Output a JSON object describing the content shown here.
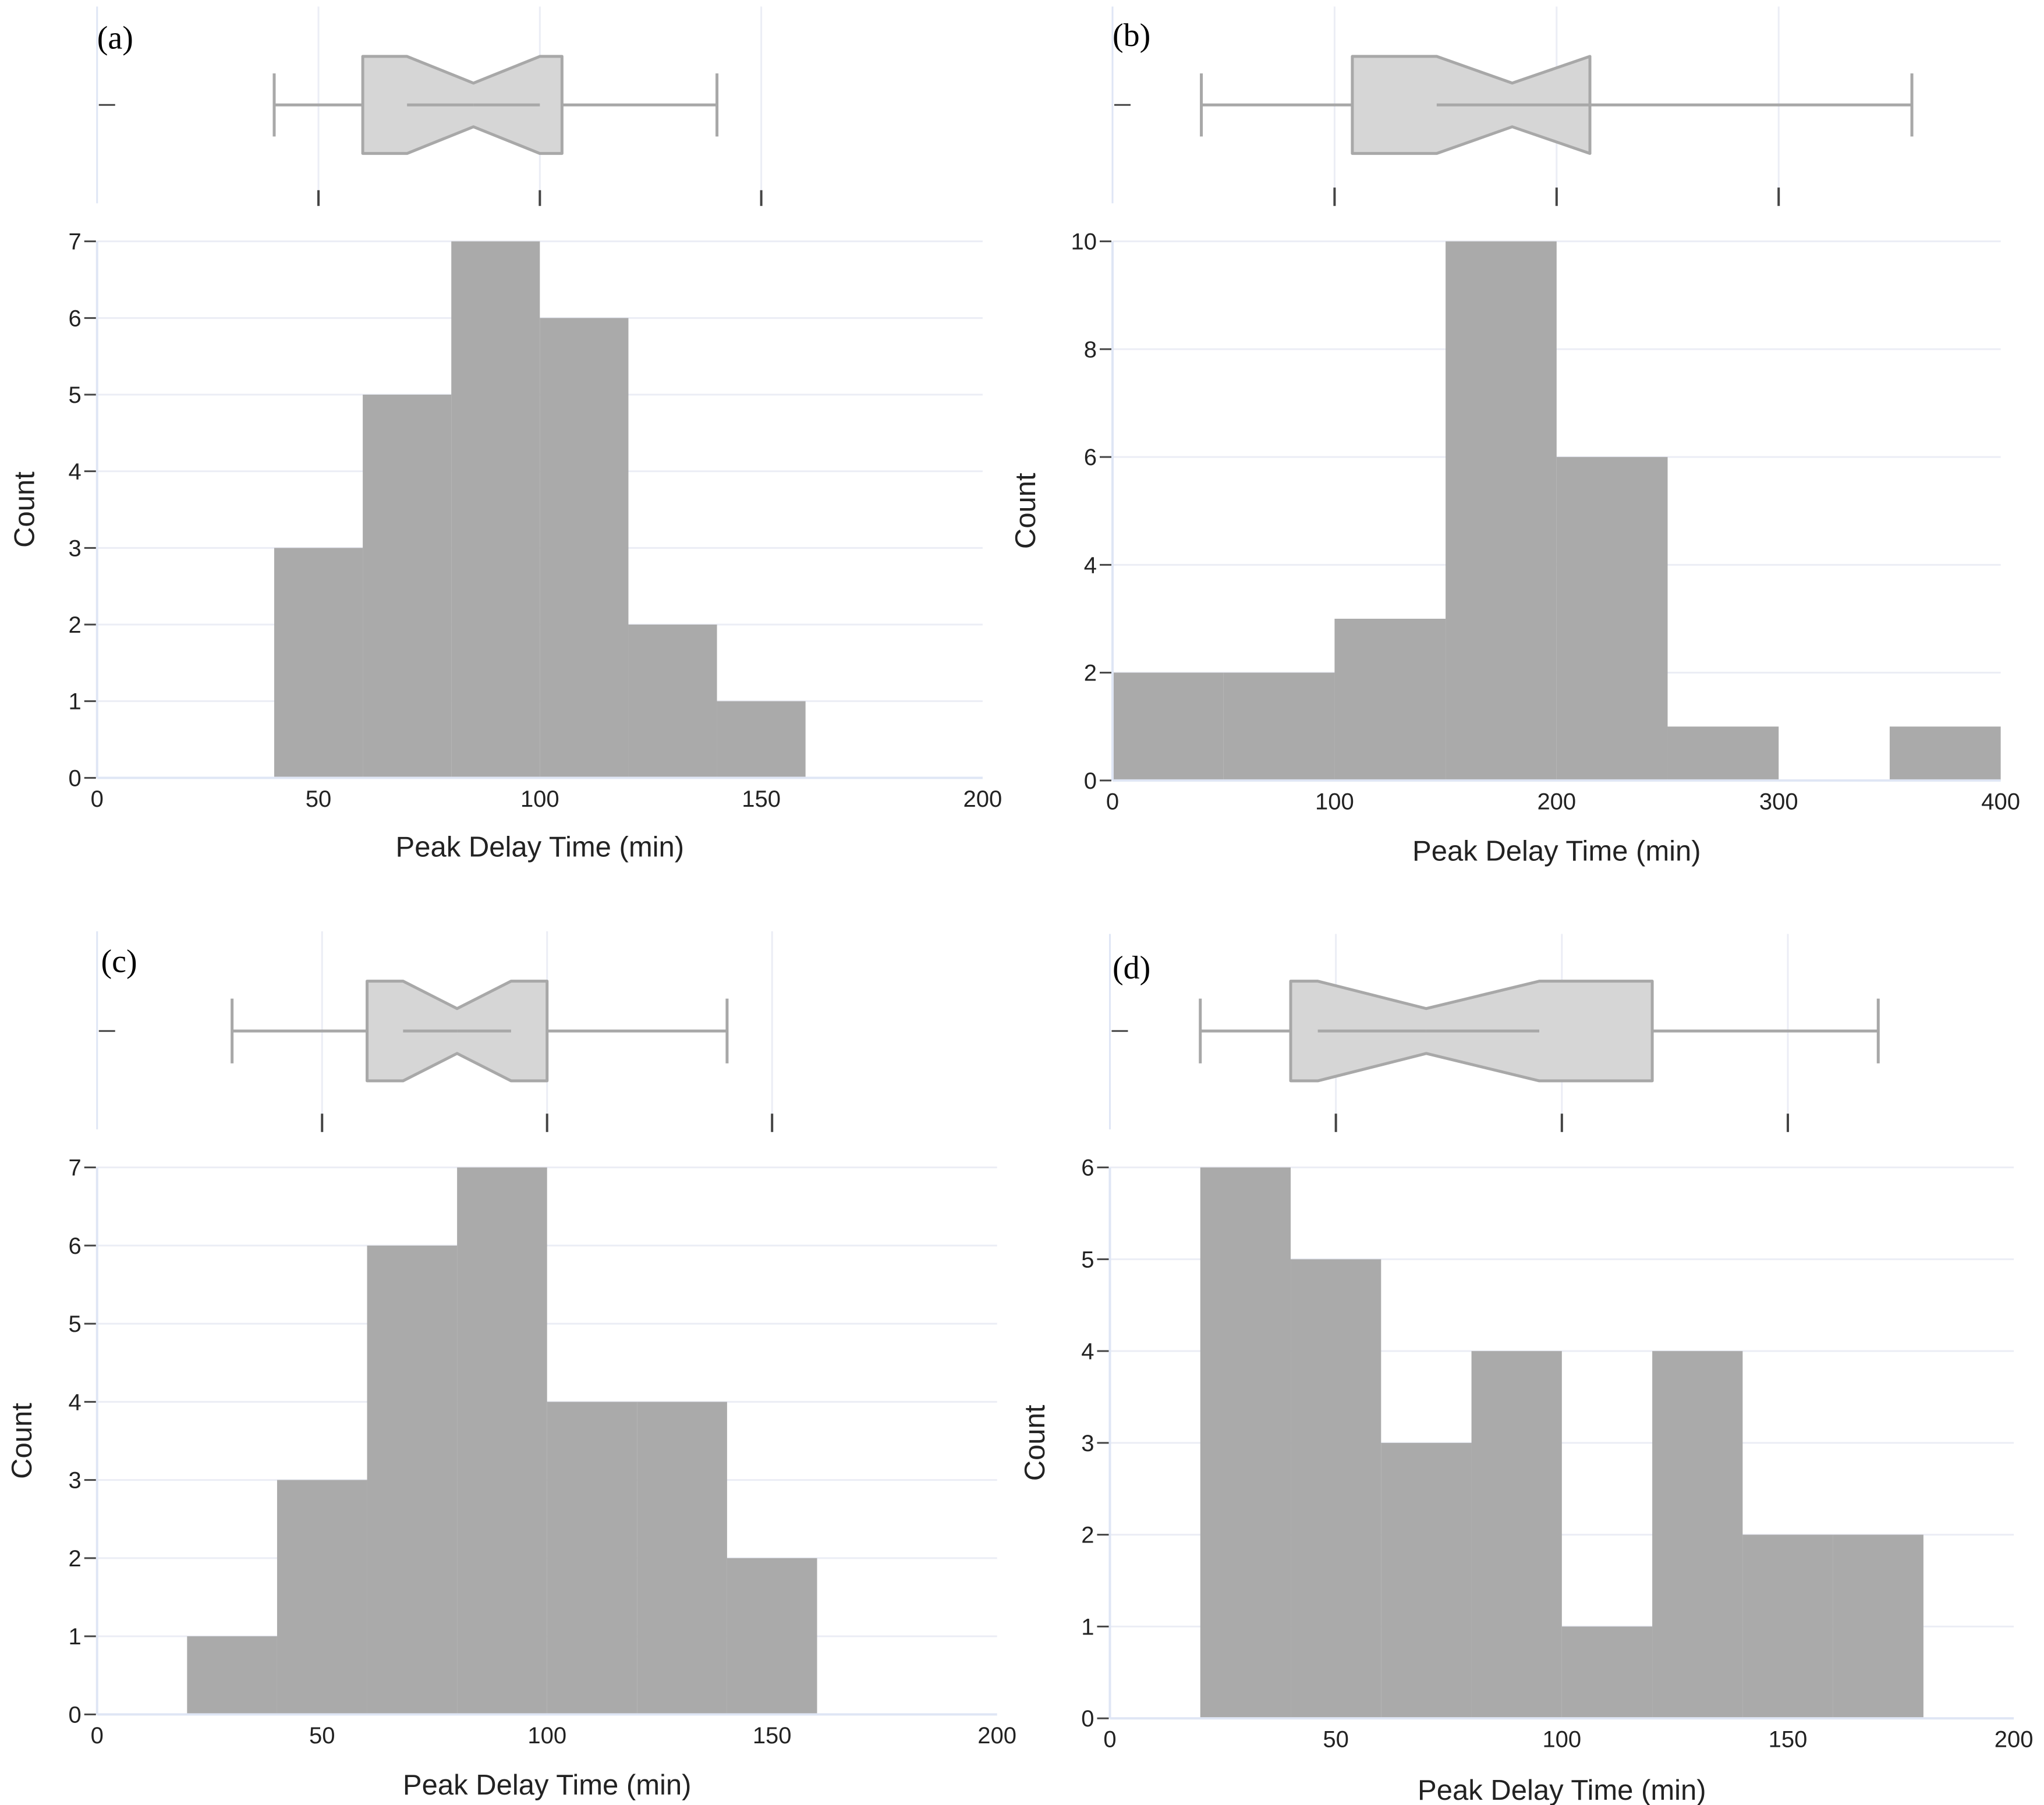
{
  "figure": {
    "xlabel": "Peak Delay Time (min)",
    "ylabel": "Count",
    "colors": {
      "bar": "#aaaaaa",
      "box_fill": "#d6d6d6",
      "box_line": "#a8a8a8",
      "grid": "#ebedf5",
      "zero_line": "#dfe6f5",
      "tick": "#444444"
    }
  },
  "chart_data": [
    {
      "panel": "(a)",
      "type": "histogram",
      "xlabel": "Peak Delay Time (min)",
      "ylabel": "Count",
      "xlim": [
        0,
        200
      ],
      "xticks": [
        0,
        50,
        100,
        150,
        200
      ],
      "ylim": [
        0,
        7
      ],
      "yticks": [
        0,
        1,
        2,
        3,
        4,
        5,
        6,
        7
      ],
      "bins": [
        {
          "start": 40,
          "end": 60,
          "count": 3
        },
        {
          "start": 60,
          "end": 80,
          "count": 5
        },
        {
          "start": 80,
          "end": 100,
          "count": 7
        },
        {
          "start": 100,
          "end": 120,
          "count": 6
        },
        {
          "start": 120,
          "end": 140,
          "count": 2
        },
        {
          "start": 140,
          "end": 160,
          "count": 1
        }
      ],
      "box": {
        "whisker_low": 40,
        "q1": 60,
        "notch_low": 70,
        "median": 85,
        "notch_high": 100,
        "q3": 105,
        "whisker_high": 140
      },
      "box_ticks": [
        50,
        100,
        150
      ]
    },
    {
      "panel": "(b)",
      "type": "histogram",
      "xlabel": "Peak Delay Time (min)",
      "ylabel": "Count",
      "xlim": [
        0,
        400
      ],
      "xticks": [
        0,
        100,
        200,
        300,
        400
      ],
      "ylim": [
        0,
        10
      ],
      "yticks": [
        0,
        2,
        4,
        6,
        8,
        10
      ],
      "bins": [
        {
          "start": 0,
          "end": 50,
          "count": 2
        },
        {
          "start": 50,
          "end": 100,
          "count": 2
        },
        {
          "start": 100,
          "end": 150,
          "count": 3
        },
        {
          "start": 150,
          "end": 200,
          "count": 10
        },
        {
          "start": 200,
          "end": 250,
          "count": 6
        },
        {
          "start": 250,
          "end": 300,
          "count": 1
        },
        {
          "start": 300,
          "end": 350,
          "count": 0
        },
        {
          "start": 350,
          "end": 400,
          "count": 1
        }
      ],
      "box": {
        "whisker_low": 40,
        "q1": 108,
        "notch_low": 146,
        "median": 180,
        "notch_high": 215,
        "q3": 215,
        "whisker_high": 360
      },
      "box_ticks": [
        100,
        200,
        300
      ]
    },
    {
      "panel": "(c)",
      "type": "histogram",
      "xlabel": "Peak Delay Time (min)",
      "ylabel": "Count",
      "xlim": [
        0,
        200
      ],
      "xticks": [
        0,
        50,
        100,
        150,
        200
      ],
      "ylim": [
        0,
        7
      ],
      "yticks": [
        0,
        1,
        2,
        3,
        4,
        5,
        6,
        7
      ],
      "bins": [
        {
          "start": 20,
          "end": 40,
          "count": 1
        },
        {
          "start": 40,
          "end": 60,
          "count": 3
        },
        {
          "start": 60,
          "end": 80,
          "count": 6
        },
        {
          "start": 80,
          "end": 100,
          "count": 7
        },
        {
          "start": 100,
          "end": 120,
          "count": 4
        },
        {
          "start": 120,
          "end": 140,
          "count": 4
        },
        {
          "start": 140,
          "end": 160,
          "count": 2
        }
      ],
      "box": {
        "whisker_low": 30,
        "q1": 60,
        "notch_low": 68,
        "median": 80,
        "notch_high": 92,
        "q3": 100,
        "whisker_high": 140
      },
      "box_ticks": [
        50,
        100,
        150
      ]
    },
    {
      "panel": "(d)",
      "type": "histogram",
      "xlabel": "Peak Delay Time (min)",
      "ylabel": "Count",
      "xlim": [
        0,
        200
      ],
      "xticks": [
        0,
        50,
        100,
        150,
        200
      ],
      "ylim": [
        0,
        6
      ],
      "yticks": [
        0,
        1,
        2,
        3,
        4,
        5,
        6
      ],
      "bins": [
        {
          "start": 20,
          "end": 40,
          "count": 6
        },
        {
          "start": 40,
          "end": 60,
          "count": 5
        },
        {
          "start": 60,
          "end": 80,
          "count": 3
        },
        {
          "start": 80,
          "end": 100,
          "count": 4
        },
        {
          "start": 100,
          "end": 120,
          "count": 1
        },
        {
          "start": 120,
          "end": 140,
          "count": 4
        },
        {
          "start": 140,
          "end": 160,
          "count": 2
        },
        {
          "start": 160,
          "end": 180,
          "count": 2
        }
      ],
      "box": {
        "whisker_low": 20,
        "q1": 40,
        "notch_low": 46,
        "median": 70,
        "notch_high": 95,
        "q3": 120,
        "whisker_high": 170
      },
      "box_ticks": [
        50,
        100,
        150
      ]
    }
  ]
}
